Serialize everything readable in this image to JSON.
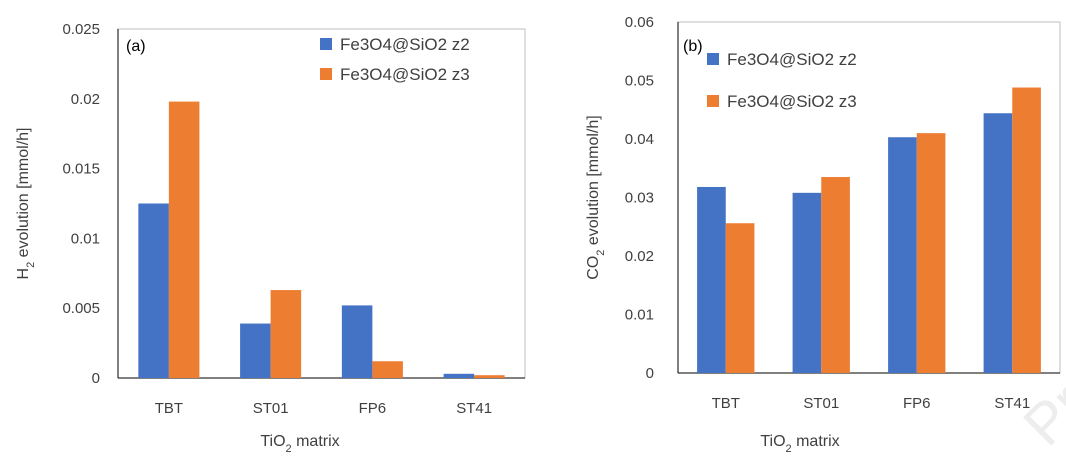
{
  "colors": {
    "series_z2": "#4472C4",
    "series_z3": "#ED7D31",
    "axis": "#000000",
    "text": "#404040"
  },
  "watermark": "Proof",
  "chart_data": [
    {
      "type": "bar",
      "panel_label": "(a)",
      "categories": [
        "TBT",
        "ST01",
        "FP6",
        "ST41"
      ],
      "series": [
        {
          "name": "Fe3O4@SiO2 z2",
          "values": [
            0.0125,
            0.0039,
            0.0052,
            0.0003
          ]
        },
        {
          "name": "Fe3O4@SiO2 z3",
          "values": [
            0.0198,
            0.0063,
            0.0012,
            0.0002
          ]
        }
      ],
      "xlabel": {
        "main": "TiO",
        "sub": "2",
        "rest": " matrix"
      },
      "ylabel": {
        "main": "H",
        "sub": "2",
        "rest": " evolution [mmol/h]"
      },
      "ylim": [
        0,
        0.025
      ],
      "yticks": [
        "0",
        "0.005",
        "0.01",
        "0.015",
        "0.02",
        "0.025"
      ],
      "grid": false,
      "legend_position": "top-right"
    },
    {
      "type": "bar",
      "panel_label": "(b)",
      "categories": [
        "TBT",
        "ST01",
        "FP6",
        "ST41"
      ],
      "series": [
        {
          "name": "Fe3O4@SiO2 z2",
          "values": [
            0.0318,
            0.0308,
            0.0403,
            0.0444
          ]
        },
        {
          "name": "Fe3O4@SiO2 z3",
          "values": [
            0.0256,
            0.0335,
            0.041,
            0.0488
          ]
        }
      ],
      "xlabel": {
        "main": "TiO",
        "sub": "2",
        "rest": " matrix"
      },
      "ylabel": {
        "main": "CO",
        "sub": "2",
        "rest": " evolution [mmol/h]"
      },
      "ylim": [
        0,
        0.06
      ],
      "yticks": [
        "0",
        "0.01",
        "0.02",
        "0.03",
        "0.04",
        "0.05",
        "0.06"
      ],
      "grid": false,
      "legend_position": "top-left"
    }
  ]
}
